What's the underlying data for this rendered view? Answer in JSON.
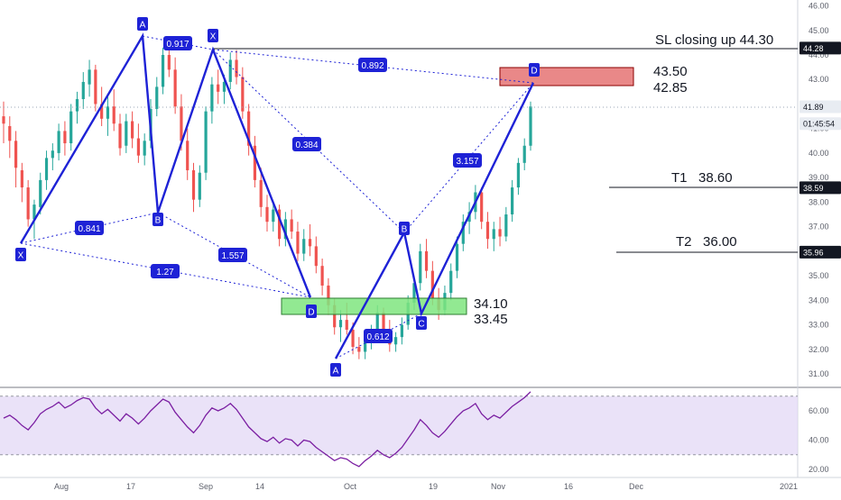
{
  "chart_data": {
    "type": "candlestick",
    "y_axis": {
      "position": "right",
      "ticks": [
        "31.00",
        "32.00",
        "33.00",
        "34.00",
        "35.00",
        "36.00",
        "37.00",
        "38.00",
        "39.00",
        "40.00",
        "41.00",
        "42.00",
        "43.00",
        "44.00",
        "45.00",
        "46.00"
      ],
      "range": [
        30.5,
        46.2
      ]
    },
    "x_axis": {
      "ticks": [
        "Aug",
        "17",
        "Sep",
        "14",
        "Oct",
        "19",
        "Nov",
        "16",
        "Dec",
        "2021"
      ]
    },
    "price_tags": [
      {
        "value": 44.28,
        "label": "44.28",
        "bg": "#131722",
        "fg": "#ffffff"
      },
      {
        "value": 41.89,
        "label": "41.89",
        "bg": "#e8ecf2",
        "fg": "#131722"
      },
      {
        "value": 41.2,
        "label": "01:45:54",
        "bg": "#e8ecf2",
        "fg": "#131722"
      },
      {
        "value": 38.59,
        "label": "38.59",
        "bg": "#131722",
        "fg": "#ffffff"
      },
      {
        "value": 35.96,
        "label": "35.96",
        "bg": "#131722",
        "fg": "#ffffff"
      }
    ],
    "candles_ohlc": [
      [
        41.5,
        42.1,
        40.4,
        41.2
      ],
      [
        41.1,
        41.5,
        39.8,
        40.5
      ],
      [
        40.5,
        40.9,
        38.6,
        39.4
      ],
      [
        39.3,
        39.6,
        38.0,
        38.6
      ],
      [
        38.6,
        38.9,
        37.0,
        37.3
      ],
      [
        37.3,
        38.1,
        36.5,
        37.9
      ],
      [
        37.8,
        39.2,
        37.5,
        38.9
      ],
      [
        38.9,
        40.1,
        38.5,
        39.8
      ],
      [
        39.8,
        40.4,
        39.3,
        40.1
      ],
      [
        40.0,
        41.2,
        39.7,
        40.9
      ],
      [
        40.9,
        41.3,
        39.9,
        40.4
      ],
      [
        40.4,
        42.0,
        40.1,
        41.7
      ],
      [
        41.7,
        42.5,
        41.2,
        42.2
      ],
      [
        42.2,
        43.3,
        41.8,
        42.9
      ],
      [
        42.8,
        43.8,
        42.3,
        43.4
      ],
      [
        43.4,
        43.6,
        41.7,
        42.0
      ],
      [
        42.0,
        42.7,
        41.1,
        41.4
      ],
      [
        41.4,
        42.3,
        40.7,
        41.9
      ],
      [
        41.9,
        42.6,
        40.9,
        41.2
      ],
      [
        41.2,
        41.6,
        39.9,
        40.2
      ],
      [
        40.3,
        41.6,
        40.0,
        41.3
      ],
      [
        41.3,
        41.7,
        40.2,
        40.6
      ],
      [
        40.6,
        41.2,
        39.6,
        39.9
      ],
      [
        39.9,
        40.8,
        39.5,
        40.5
      ],
      [
        40.5,
        42.2,
        40.2,
        41.8
      ],
      [
        41.8,
        43.1,
        41.5,
        42.7
      ],
      [
        42.7,
        44.3,
        42.4,
        44.0
      ],
      [
        44.0,
        44.7,
        43.1,
        43.4
      ],
      [
        43.4,
        43.9,
        41.6,
        41.9
      ],
      [
        41.9,
        42.4,
        40.1,
        40.5
      ],
      [
        40.5,
        41.0,
        38.9,
        39.3
      ],
      [
        39.3,
        39.6,
        37.6,
        38.1
      ],
      [
        38.1,
        39.5,
        37.8,
        39.2
      ],
      [
        39.2,
        41.9,
        38.9,
        41.7
      ],
      [
        41.7,
        43.1,
        41.2,
        42.8
      ],
      [
        42.8,
        43.4,
        42.0,
        42.5
      ],
      [
        42.5,
        43.2,
        42.0,
        42.9
      ],
      [
        42.9,
        44.1,
        42.6,
        43.8
      ],
      [
        43.8,
        44.2,
        42.8,
        43.1
      ],
      [
        43.1,
        43.5,
        41.4,
        41.7
      ],
      [
        41.7,
        42.0,
        39.9,
        40.3
      ],
      [
        40.3,
        40.7,
        38.6,
        38.9
      ],
      [
        38.9,
        39.4,
        37.4,
        37.8
      ],
      [
        37.8,
        38.3,
        36.8,
        37.2
      ],
      [
        37.2,
        38.0,
        36.8,
        37.7
      ],
      [
        37.7,
        37.9,
        36.2,
        36.5
      ],
      [
        36.5,
        37.6,
        36.2,
        37.3
      ],
      [
        37.3,
        37.7,
        36.5,
        36.8
      ],
      [
        36.8,
        37.2,
        35.6,
        35.9
      ],
      [
        35.9,
        36.9,
        35.6,
        36.5
      ],
      [
        36.5,
        37.1,
        35.8,
        36.2
      ],
      [
        36.2,
        36.6,
        35.1,
        35.4
      ],
      [
        35.4,
        35.7,
        34.2,
        34.6
      ],
      [
        34.6,
        34.9,
        33.4,
        33.8
      ],
      [
        33.8,
        34.1,
        32.6,
        32.9
      ],
      [
        32.9,
        33.6,
        32.3,
        33.2
      ],
      [
        33.2,
        33.9,
        32.6,
        32.8
      ],
      [
        32.8,
        33.1,
        31.8,
        32.1
      ],
      [
        32.1,
        32.5,
        31.6,
        31.9
      ],
      [
        31.9,
        32.6,
        31.6,
        32.4
      ],
      [
        32.4,
        33.0,
        32.0,
        32.8
      ],
      [
        32.8,
        33.8,
        32.5,
        33.5
      ],
      [
        33.5,
        33.7,
        32.4,
        32.7
      ],
      [
        32.7,
        33.2,
        31.9,
        32.2
      ],
      [
        32.2,
        32.7,
        31.9,
        32.5
      ],
      [
        32.5,
        33.3,
        32.2,
        33.0
      ],
      [
        33.0,
        34.2,
        32.8,
        33.9
      ],
      [
        33.9,
        35.0,
        33.6,
        34.7
      ],
      [
        34.7,
        36.3,
        34.4,
        36.0
      ],
      [
        36.0,
        36.5,
        34.9,
        35.2
      ],
      [
        35.2,
        35.6,
        33.8,
        34.1
      ],
      [
        34.1,
        34.5,
        33.2,
        33.6
      ],
      [
        33.6,
        34.6,
        33.4,
        34.3
      ],
      [
        34.3,
        35.5,
        34.0,
        35.2
      ],
      [
        35.2,
        36.6,
        34.9,
        36.3
      ],
      [
        36.3,
        37.5,
        36.0,
        37.2
      ],
      [
        37.2,
        38.0,
        36.7,
        37.6
      ],
      [
        37.6,
        38.7,
        37.3,
        38.4
      ],
      [
        38.4,
        38.6,
        36.9,
        37.2
      ],
      [
        37.2,
        37.6,
        36.1,
        36.5
      ],
      [
        36.5,
        37.2,
        36.0,
        36.9
      ],
      [
        36.9,
        37.4,
        36.2,
        36.6
      ],
      [
        36.6,
        37.8,
        36.4,
        37.5
      ],
      [
        37.5,
        38.9,
        37.2,
        38.6
      ],
      [
        38.6,
        39.8,
        38.3,
        39.6
      ],
      [
        39.6,
        40.6,
        39.3,
        40.3
      ],
      [
        40.3,
        42.1,
        40.1,
        41.9
      ]
    ],
    "rsi": {
      "ticks": [
        "20.00",
        "40.00",
        "60.00"
      ],
      "range": [
        18,
        78
      ],
      "upper_band": 70,
      "lower_band": 30,
      "values": [
        55,
        57,
        54,
        50,
        47,
        52,
        58,
        61,
        63,
        66,
        62,
        64,
        67,
        69,
        68,
        62,
        58,
        61,
        57,
        53,
        58,
        55,
        51,
        55,
        60,
        64,
        68,
        66,
        59,
        54,
        49,
        45,
        50,
        57,
        62,
        60,
        62,
        65,
        61,
        55,
        49,
        45,
        41,
        39,
        42,
        38,
        41,
        40,
        36,
        40,
        39,
        35,
        32,
        29,
        26,
        28,
        27,
        24,
        22,
        26,
        29,
        33,
        30,
        28,
        31,
        35,
        41,
        47,
        54,
        50,
        45,
        42,
        46,
        51,
        56,
        60,
        62,
        65,
        58,
        54,
        57,
        55,
        59,
        63,
        66,
        69,
        73
      ]
    },
    "pattern_labels": [
      {
        "text": "X"
      },
      {
        "text": "A"
      },
      {
        "text": "B"
      },
      {
        "text": "X"
      },
      {
        "text": "D"
      },
      {
        "text": "A"
      },
      {
        "text": "B"
      },
      {
        "text": "C"
      },
      {
        "text": "D"
      }
    ],
    "ratios": [
      "0.917",
      "0.841",
      "0.384",
      "1.27",
      "1.557",
      "0.892",
      "3.157",
      "0.612"
    ],
    "annotations": {
      "sl": "SL closing up 44.30",
      "sell_zone_top": "43.50",
      "sell_zone_bottom": "42.85",
      "buy_zone_top": "34.10",
      "buy_zone_bottom": "33.45",
      "t1": "T1   38.60",
      "t2": "T2   36.00"
    },
    "levels": {
      "sl": 44.3,
      "t1": 38.6,
      "t2": 36.0,
      "sell_zone": [
        42.85,
        43.5
      ],
      "buy_zone": [
        33.45,
        34.1
      ]
    },
    "colors": {
      "bull": "#26a69a",
      "bear": "#ef5350",
      "pattern": "#1e22d6",
      "sell_zone": "#e57373",
      "buy_zone": "#7fe57f",
      "rsi_line": "#7b1fa2",
      "rsi_band": "#e1d5f5"
    }
  }
}
